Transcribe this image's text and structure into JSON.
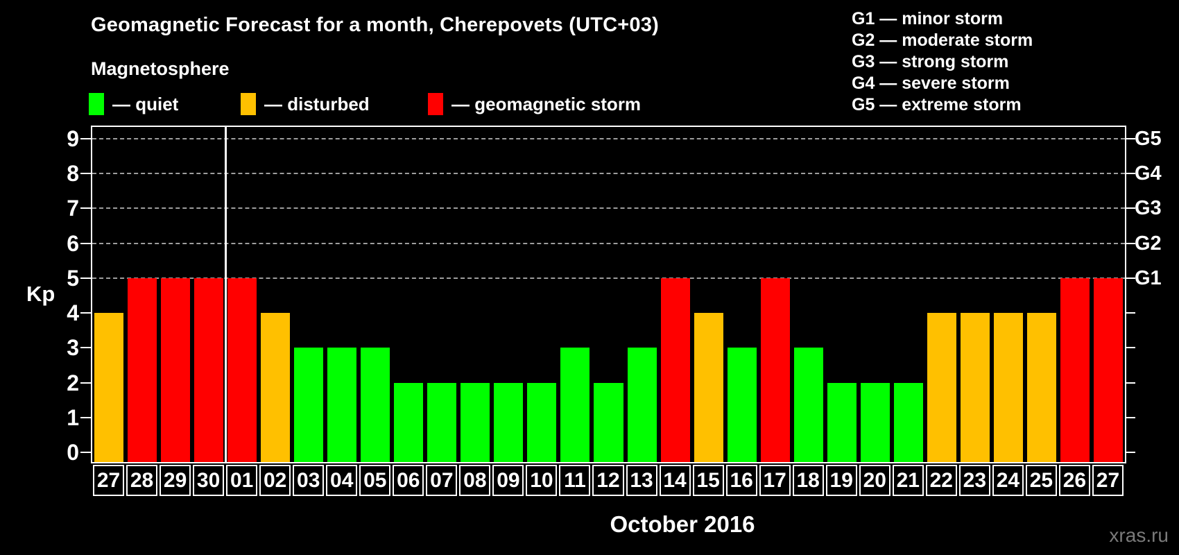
{
  "header": {
    "title": "Geomagnetic Forecast for a month, Cherepovets (UTC+03)",
    "subtitle": "Magnetosphere"
  },
  "legend": {
    "items": [
      {
        "name": "quiet",
        "label": "— quiet",
        "color": "#00ff00"
      },
      {
        "name": "disturbed",
        "label": "— disturbed",
        "color": "#ffc000"
      },
      {
        "name": "storm",
        "label": "— geomagnetic storm",
        "color": "#ff0000"
      }
    ]
  },
  "storm_scale_legend": {
    "items": [
      "G1 — minor storm",
      "G2 — moderate storm",
      "G3 — strong storm",
      "G4 — severe storm",
      "G5 — extreme storm"
    ]
  },
  "footer": {
    "xlabel": "October 2016",
    "watermark": "xras.ru"
  },
  "colors": {
    "background": "#000000",
    "axis": "#ffffff",
    "grid": "#9e9e9e",
    "watermark": "#7a7a7a"
  },
  "chart_data": {
    "type": "bar",
    "title": "Geomagnetic Forecast for a month, Cherepovets (UTC+03)",
    "ylabel": "Kp",
    "xlabel": "October 2016",
    "ylim": [
      0,
      9
    ],
    "yticks": [
      "0",
      "1",
      "2",
      "3",
      "4",
      "5",
      "6",
      "7",
      "8",
      "9"
    ],
    "gridline_levels": [
      5,
      6,
      7,
      8,
      9
    ],
    "grid_style": "horizontal dashed lines at Kp 5-9 only",
    "legend_position": "top",
    "right_axis": [
      {
        "value": 5,
        "label": "G1"
      },
      {
        "value": 6,
        "label": "G2"
      },
      {
        "value": 7,
        "label": "G3"
      },
      {
        "value": 8,
        "label": "G4"
      },
      {
        "value": 9,
        "label": "G5"
      }
    ],
    "categories": [
      "27",
      "28",
      "29",
      "30",
      "01",
      "02",
      "03",
      "04",
      "05",
      "06",
      "07",
      "08",
      "09",
      "10",
      "11",
      "12",
      "13",
      "14",
      "15",
      "16",
      "17",
      "18",
      "19",
      "20",
      "21",
      "22",
      "23",
      "24",
      "25",
      "26",
      "27"
    ],
    "values": [
      4,
      5,
      5,
      5,
      5,
      4,
      3,
      3,
      3,
      2,
      2,
      2,
      2,
      2,
      3,
      2,
      3,
      5,
      4,
      3,
      5,
      3,
      2,
      2,
      2,
      4,
      4,
      4,
      4,
      5,
      5
    ],
    "color_rule": "Kp<=3 quiet green, Kp=4 disturbed orange, Kp>=5 storm red",
    "month_boundary_after_index": 3
  }
}
